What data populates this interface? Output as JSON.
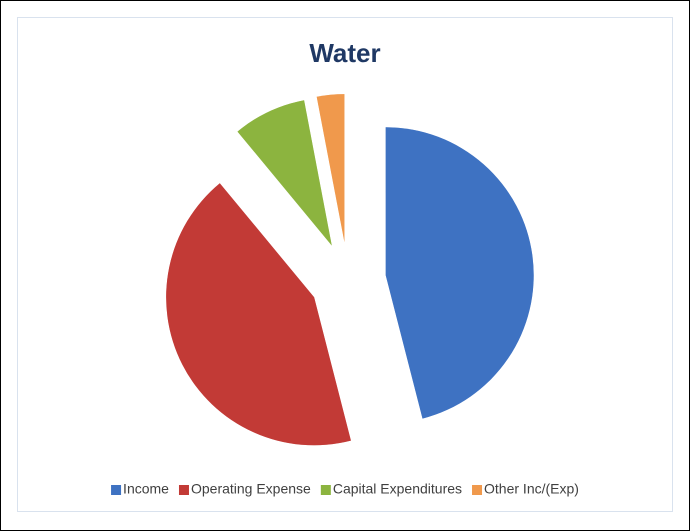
{
  "chart_data": {
    "type": "pie",
    "title": "Water",
    "categories": [
      "Income",
      "Operating Expense",
      "Capital Expenditures",
      "Other Inc/(Exp)"
    ],
    "values": [
      46,
      43,
      8,
      3
    ],
    "colors": [
      "#3e72c2",
      "#c23a36",
      "#8cb43f",
      "#f0994c"
    ],
    "legend": "bottom",
    "exploded": true
  }
}
